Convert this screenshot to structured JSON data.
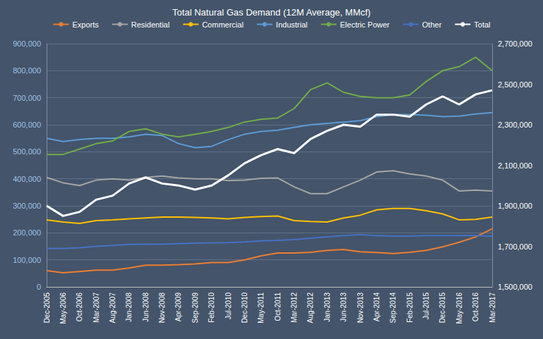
{
  "chart_data": {
    "type": "line",
    "title": "Total Natural Gas Demand (12M Average, MMcf)",
    "categories": [
      "Dec-2005",
      "May-2006",
      "Oct-2006",
      "Mar-2007",
      "Aug-2007",
      "Jan-2008",
      "Jun-2008",
      "Nov-2008",
      "Apr-2009",
      "Sep-2009",
      "Feb-2010",
      "Jul-2010",
      "Dec-2010",
      "May-2011",
      "Oct-2011",
      "Mar-2012",
      "Aug-2012",
      "Jan-2013",
      "Jun-2013",
      "Nov-2013",
      "Apr-2014",
      "Sep-2014",
      "Feb-2015",
      "Jul-2015",
      "Dec-2015",
      "May-2016",
      "Oct-2016",
      "Mar-2017"
    ],
    "series": [
      {
        "name": "Exports",
        "color": "#ed7d31",
        "values": [
          60000,
          52000,
          57000,
          62000,
          62000,
          70000,
          80000,
          80000,
          82000,
          85000,
          90000,
          90000,
          100000,
          115000,
          125000,
          125000,
          128000,
          135000,
          138000,
          130000,
          127000,
          123000,
          128000,
          135000,
          148000,
          165000,
          185000,
          215000
        ]
      },
      {
        "name": "Residential",
        "color": "#a5a5a5",
        "values": [
          405000,
          385000,
          375000,
          395000,
          400000,
          395000,
          405000,
          410000,
          403000,
          400000,
          400000,
          393000,
          395000,
          402000,
          403000,
          370000,
          345000,
          345000,
          370000,
          395000,
          425000,
          430000,
          418000,
          410000,
          395000,
          355000,
          358000,
          355000
        ]
      },
      {
        "name": "Commercial",
        "color": "#ffc000",
        "values": [
          248000,
          240000,
          235000,
          245000,
          248000,
          252000,
          255000,
          258000,
          258000,
          257000,
          255000,
          252000,
          257000,
          260000,
          262000,
          245000,
          242000,
          240000,
          255000,
          265000,
          285000,
          290000,
          290000,
          282000,
          270000,
          248000,
          250000,
          258000
        ]
      },
      {
        "name": "Industrial",
        "color": "#5b9bd5",
        "values": [
          550000,
          538000,
          545000,
          550000,
          550000,
          555000,
          565000,
          560000,
          530000,
          515000,
          520000,
          545000,
          565000,
          575000,
          580000,
          590000,
          600000,
          605000,
          610000,
          615000,
          630000,
          638000,
          638000,
          635000,
          630000,
          632000,
          640000,
          645000
        ]
      },
      {
        "name": "Electric Power",
        "color": "#70ad47",
        "values": [
          490000,
          490000,
          510000,
          530000,
          540000,
          575000,
          585000,
          565000,
          555000,
          565000,
          575000,
          590000,
          610000,
          620000,
          625000,
          660000,
          730000,
          755000,
          720000,
          705000,
          700000,
          700000,
          710000,
          760000,
          800000,
          815000,
          850000,
          800000
        ]
      },
      {
        "name": "Other",
        "color": "#4472c4",
        "values": [
          142000,
          142000,
          145000,
          150000,
          153000,
          157000,
          158000,
          158000,
          160000,
          162000,
          163000,
          164000,
          166000,
          170000,
          172000,
          175000,
          180000,
          185000,
          190000,
          193000,
          190000,
          188000,
          188000,
          190000,
          190000,
          190000,
          190000,
          188000
        ]
      },
      {
        "name": "Total",
        "color": "#ffffff",
        "axis": "y2",
        "values": [
          1900000,
          1850000,
          1870000,
          1930000,
          1950000,
          2010000,
          2040000,
          2010000,
          2000000,
          1980000,
          2000000,
          2050000,
          2110000,
          2150000,
          2180000,
          2160000,
          2230000,
          2270000,
          2300000,
          2290000,
          2350000,
          2350000,
          2340000,
          2400000,
          2440000,
          2400000,
          2450000,
          2470000
        ]
      }
    ],
    "ylim": [
      0,
      900000
    ],
    "yticks": [
      0,
      {
        "value": 100000,
        "label": "100,000"
      },
      {
        "value": 200000,
        "label": "200,000"
      },
      {
        "value": 300000,
        "label": "300,000"
      },
      {
        "value": 400000,
        "label": "400,000"
      },
      {
        "value": 500000,
        "label": "500,000"
      },
      {
        "value": 600000,
        "label": "600,000"
      },
      {
        "value": 700000,
        "label": "700,000"
      },
      {
        "value": 800000,
        "label": "800,000"
      },
      {
        "value": 900000,
        "label": "900,000"
      }
    ],
    "y2lim": [
      1500000,
      2700000
    ],
    "y2ticks": [
      {
        "value": 1500000,
        "label": "1,500,000"
      },
      {
        "value": 1700000,
        "label": "1,700,000"
      },
      {
        "value": 1900000,
        "label": "1,900,000"
      },
      {
        "value": 2100000,
        "label": "2,100,000"
      },
      {
        "value": 2300000,
        "label": "2,300,000"
      },
      {
        "value": 2500000,
        "label": "2,500,000"
      },
      {
        "value": 2700000,
        "label": "2,700,000"
      }
    ],
    "grid": true,
    "legend": "top"
  }
}
